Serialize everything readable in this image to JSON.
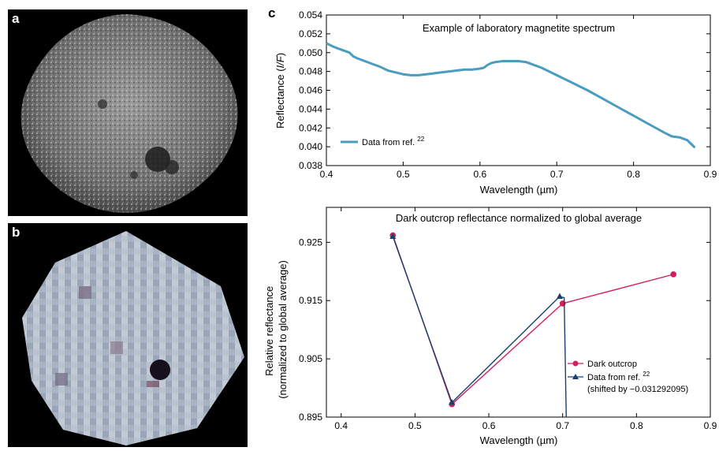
{
  "panels": {
    "a": "a",
    "b": "b",
    "c": "c"
  },
  "chart_data": [
    {
      "type": "line",
      "title": "Example of laboratory magnetite spectrum",
      "xlabel": "Wavelength (µm)",
      "ylabel_main": "Reflectance (",
      "ylabel_italic": "I/F",
      "ylabel_end": ")",
      "xlim": [
        0.4,
        0.9
      ],
      "ylim": [
        0.038,
        0.054
      ],
      "x_ticks": [
        "0.4",
        "0.5",
        "0.6",
        "0.7",
        "0.8",
        "0.9"
      ],
      "y_ticks": [
        "0.038",
        "0.040",
        "0.042",
        "0.044",
        "0.046",
        "0.048",
        "0.050",
        "0.052",
        "0.054"
      ],
      "legend_placement": "bottom-left",
      "series": [
        {
          "name": "Data from ref. ",
          "name_superscript": "22",
          "color": "#4a9cc0",
          "x": [
            0.4,
            0.41,
            0.42,
            0.43,
            0.435,
            0.44,
            0.45,
            0.46,
            0.47,
            0.48,
            0.49,
            0.5,
            0.51,
            0.52,
            0.53,
            0.54,
            0.55,
            0.56,
            0.57,
            0.58,
            0.59,
            0.6,
            0.605,
            0.61,
            0.615,
            0.62,
            0.63,
            0.64,
            0.65,
            0.66,
            0.67,
            0.68,
            0.69,
            0.7,
            0.72,
            0.74,
            0.76,
            0.78,
            0.8,
            0.82,
            0.84,
            0.85,
            0.86,
            0.87,
            0.875,
            0.88
          ],
          "y": [
            0.051,
            0.0506,
            0.0503,
            0.05,
            0.0496,
            0.0494,
            0.0491,
            0.0488,
            0.0485,
            0.0481,
            0.0479,
            0.0477,
            0.0476,
            0.0476,
            0.0477,
            0.0478,
            0.0479,
            0.048,
            0.0481,
            0.0482,
            0.0482,
            0.0483,
            0.0484,
            0.0487,
            0.0489,
            0.049,
            0.0491,
            0.0491,
            0.0491,
            0.049,
            0.0487,
            0.0484,
            0.048,
            0.0476,
            0.0468,
            0.046,
            0.0451,
            0.0442,
            0.0433,
            0.0424,
            0.0415,
            0.0411,
            0.041,
            0.0407,
            0.0403,
            0.0399
          ]
        }
      ]
    },
    {
      "type": "line",
      "title": "Dark outcrop reflectance normalized to global average",
      "xlabel": "Wavelength (µm)",
      "ylabel_line1": "Relative reflectance",
      "ylabel_line2": "(normalized to global average)",
      "xlim": [
        0.38,
        0.9
      ],
      "ylim": [
        0.895,
        0.931
      ],
      "x_ticks": [
        "0.4",
        "0.5",
        "0.6",
        "0.7",
        "0.8",
        "0.9"
      ],
      "y_ticks": [
        "0.895",
        "0.905",
        "0.915",
        "0.925"
      ],
      "legend_placement": "right",
      "series": [
        {
          "name": "Dark outcrop",
          "color": "#d11f5a",
          "marker": "circle",
          "x": [
            0.47,
            0.55,
            0.7,
            0.85
          ],
          "y": [
            0.9262,
            0.8972,
            0.9145,
            0.9195
          ]
        },
        {
          "name": "Data from ref. ",
          "name_superscript": "22",
          "note": "(shifted by −0.031292095)",
          "color": "#1a3f6f",
          "marker": "triangle",
          "x": [
            0.47,
            0.55,
            0.696,
            0.702,
            0.705
          ],
          "y": [
            0.926,
            0.8975,
            0.9157,
            0.9155,
            0.894
          ]
        }
      ]
    }
  ]
}
